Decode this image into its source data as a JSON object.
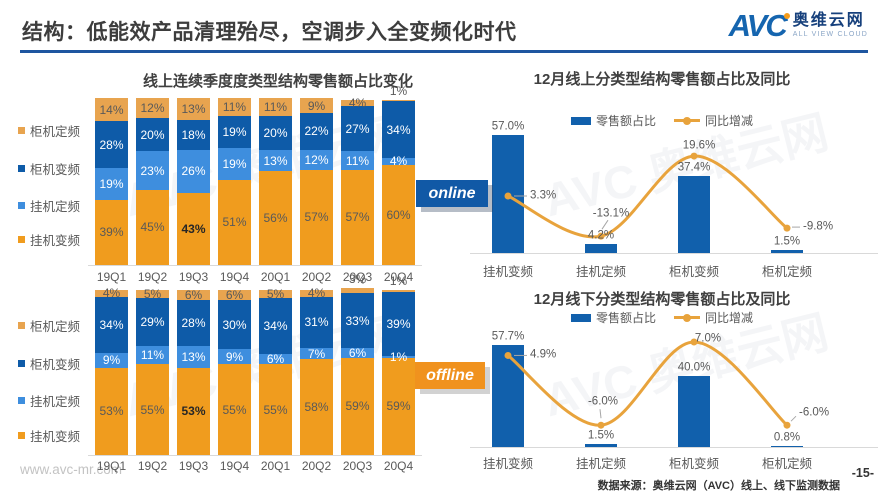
{
  "header": {
    "title": "结构：低能效产品清理殆尽，空调步入全变频化时代",
    "logo": {
      "avc": "AVC",
      "name_cn": "奥维云网",
      "name_en": "ALL VIEW CLOUD"
    }
  },
  "badges": {
    "online": "online",
    "offline": "offline"
  },
  "watermark": "AVC 奥维云网",
  "footer": {
    "website": "www.avc-mr.com",
    "source": "数据来源：奥维云网（AVC）线上、线下监测数据",
    "page": "-15-"
  },
  "colors": {
    "cabinet_fixed_tan": "#E8A44F",
    "cabinet_inverter_dark_blue": "#0E5BA8",
    "wall_fixed_light_blue": "#3E8EDE",
    "wall_inverter_orange": "#F09C1E",
    "combo_bar_blue": "#1160AC",
    "combo_line_orange": "#E8A33C",
    "title_underline_blue": "#1E56A0",
    "online_badge_blue": "#1159A6",
    "offline_badge_orange": "#F0921E"
  },
  "chart_data": [
    {
      "id": "online_stacked",
      "type": "bar",
      "stacked": true,
      "unit": "%",
      "ylim": [
        0,
        100
      ],
      "title": "线上连续季度度类型结构零售额占比变化",
      "categories": [
        "19Q1",
        "19Q2",
        "19Q3",
        "19Q4",
        "20Q1",
        "20Q2",
        "20Q3",
        "20Q4"
      ],
      "legend_order": [
        "柜机定频",
        "柜机变频",
        "挂机定频",
        "挂机变频"
      ],
      "series": [
        {
          "name": "挂机变频",
          "color": "#F09C1E",
          "label_color": "#595959",
          "values": [
            39,
            45,
            43,
            51,
            56,
            57,
            57,
            60
          ],
          "bold_indices": [
            2
          ]
        },
        {
          "name": "挂机定频",
          "color": "#3E8EDE",
          "label_color": "#FFFFFF",
          "values": [
            19,
            23,
            26,
            19,
            13,
            12,
            11,
            4
          ]
        },
        {
          "name": "柜机变频",
          "color": "#0E5BA8",
          "label_color": "#FFFFFF",
          "values": [
            28,
            20,
            18,
            19,
            20,
            22,
            27,
            34
          ]
        },
        {
          "name": "柜机定频",
          "color": "#E8A44F",
          "label_color": "#595959",
          "values": [
            14,
            12,
            13,
            11,
            11,
            9,
            4,
            1
          ]
        }
      ]
    },
    {
      "id": "offline_stacked",
      "type": "bar",
      "stacked": true,
      "unit": "%",
      "ylim": [
        0,
        100
      ],
      "title": "",
      "categories": [
        "19Q1",
        "19Q2",
        "19Q3",
        "19Q4",
        "20Q1",
        "20Q2",
        "20Q3",
        "20Q4"
      ],
      "legend_order": [
        "柜机定频",
        "柜机变频",
        "挂机定频",
        "挂机变频"
      ],
      "series": [
        {
          "name": "挂机变频",
          "color": "#F09C1E",
          "label_color": "#595959",
          "values": [
            53,
            55,
            53,
            55,
            55,
            58,
            59,
            59
          ],
          "bold_indices": [
            2
          ]
        },
        {
          "name": "挂机定频",
          "color": "#3E8EDE",
          "label_color": "#FFFFFF",
          "values": [
            9,
            11,
            13,
            9,
            6,
            7,
            6,
            1
          ]
        },
        {
          "name": "柜机变频",
          "color": "#0E5BA8",
          "label_color": "#FFFFFF",
          "values": [
            34,
            29,
            28,
            30,
            34,
            31,
            33,
            39
          ]
        },
        {
          "name": "柜机定频",
          "color": "#E8A44F",
          "label_color": "#595959",
          "values": [
            4,
            5,
            6,
            6,
            5,
            4,
            3,
            1
          ]
        }
      ]
    },
    {
      "id": "online_combo",
      "type": "bar",
      "subtype": "bar+line",
      "title": "12月线上分类型结构零售额占比及同比",
      "legend": [
        "零售额占比",
        "同比增减"
      ],
      "categories": [
        "挂机变频",
        "挂机定频",
        "柜机变频",
        "柜机定频"
      ],
      "bars": [
        57.0,
        4.2,
        37.4,
        1.5
      ],
      "bar_labels": [
        "57.0%",
        "4.2%",
        "37.4%",
        "1.5%"
      ],
      "line": [
        3.3,
        -13.1,
        19.6,
        -9.8
      ],
      "line_labels": [
        "3.3%",
        "-13.1%",
        "19.6%",
        "-9.8%"
      ]
    },
    {
      "id": "offline_combo",
      "type": "bar",
      "subtype": "bar+line",
      "title": "12月线下分类型结构零售额占比及同比",
      "legend": [
        "零售额占比",
        "同比增减"
      ],
      "categories": [
        "挂机变频",
        "挂机定频",
        "柜机变频",
        "柜机定频"
      ],
      "bars": [
        57.7,
        1.5,
        40.0,
        0.8
      ],
      "bar_labels": [
        "57.7%",
        "1.5%",
        "40.0%",
        "0.8%"
      ],
      "line": [
        4.9,
        -6.0,
        7.0,
        -6.0
      ],
      "line_labels": [
        "4.9%",
        "-6.0%",
        "7.0%",
        "-6.0%"
      ]
    }
  ]
}
